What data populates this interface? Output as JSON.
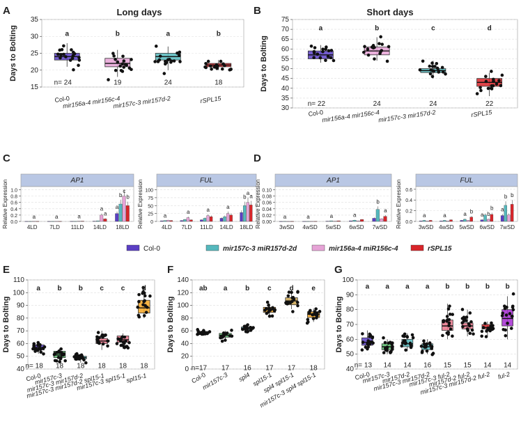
{
  "colors": {
    "col0": "#5b3fc4",
    "mir157": "#55b8bd",
    "mir156": "#e6a3d6",
    "rspl15": "#d8252a",
    "green": "#5bbf6d",
    "orange": "#f5a623",
    "pink": "#e8748a",
    "tan": "#c9a24d",
    "magenta": "#a52bd1",
    "grey": "#9aa0a6",
    "header": "#b9c7e4"
  },
  "chart_data": [
    {
      "id": "A",
      "type": "box",
      "title": "Long days",
      "ylabel": "Days to Bolting",
      "ylim": [
        15,
        35
      ],
      "yticks": [
        15,
        20,
        25,
        30,
        35
      ],
      "categories": [
        "Col-0",
        "mir156a-4 mir156c-4",
        "mir157c-3 mir157d-2",
        "rSPL15"
      ],
      "italic": [
        false,
        true,
        true,
        true
      ],
      "median": [
        24,
        22,
        24,
        21.5
      ],
      "q1": [
        23,
        21,
        23,
        21
      ],
      "q3": [
        25,
        23.5,
        25,
        22
      ],
      "low": [
        21,
        18,
        20,
        20
      ],
      "high": [
        28,
        26,
        27,
        23
      ],
      "letters": [
        "a",
        "b",
        "a",
        "b"
      ],
      "letter_y": 31,
      "n": [
        "n= 24",
        "19",
        "24",
        "18"
      ],
      "n_y": 16.5,
      "color_keys": [
        "col0",
        "mir156",
        "mir157",
        "rspl15"
      ]
    },
    {
      "id": "B",
      "type": "box",
      "title": "Short days",
      "ylabel": "Days to Bolting",
      "ylim": [
        30,
        75
      ],
      "yticks": [
        30,
        35,
        40,
        45,
        50,
        55,
        60,
        65,
        70,
        75
      ],
      "categories": [
        "Col-0",
        "mir156a-4 mir156c-4",
        "mir157c-3 mir157d-2",
        "rSPL15"
      ],
      "italic": [
        false,
        true,
        true,
        true
      ],
      "median": [
        57,
        59,
        49,
        43
      ],
      "q1": [
        55,
        57,
        48,
        41
      ],
      "q3": [
        59,
        61,
        50,
        45
      ],
      "low": [
        53,
        54,
        45,
        36
      ],
      "high": [
        62,
        66,
        54,
        48
      ],
      "letters": [
        "a",
        "b",
        "c",
        "d"
      ],
      "letter_y": 71,
      "n": [
        "n= 22",
        "24",
        "24",
        "22"
      ],
      "n_y": 32.5,
      "color_keys": [
        "col0",
        "mir156",
        "mir157",
        "rspl15"
      ]
    },
    {
      "id": "C1",
      "type": "bar",
      "title": "AP1",
      "ylabel": "Relative Expression",
      "ylim": [
        0,
        1.1
      ],
      "yticks": [
        0,
        0.2,
        0.4,
        0.6,
        0.8,
        1.0
      ],
      "ytick_labels": [
        "0.0",
        "0.2",
        "0.4",
        "0.6",
        "0.8",
        "1.0"
      ],
      "categories": [
        "4LD",
        "7LD",
        "11LD",
        "14LD",
        "18LD"
      ],
      "series": [
        {
          "name": "Col-0",
          "values": [
            0.003,
            0.003,
            0.005,
            0.01,
            0.25
          ]
        },
        {
          "name": "mir157c-3 miR157d-2d",
          "values": [
            0.003,
            0.003,
            0.005,
            0.02,
            0.55
          ]
        },
        {
          "name": "mir156a-4 miR156c-4",
          "values": [
            0.004,
            0.004,
            0.01,
            0.2,
            0.8
          ]
        },
        {
          "name": "rSPL15",
          "values": [
            0.004,
            0.004,
            0.01,
            0.08,
            0.5
          ]
        }
      ],
      "group_letters": [
        {
          "cat": 0,
          "s": 2,
          "t": "a"
        },
        {
          "cat": 1,
          "s": 2,
          "t": "a"
        },
        {
          "cat": 2,
          "s": 2,
          "t": "a"
        },
        {
          "cat": 3,
          "s": 2,
          "t": "a"
        },
        {
          "cat": 3,
          "s": 3,
          "t": "a"
        },
        {
          "cat": 4,
          "s": 0,
          "t": "a"
        },
        {
          "cat": 4,
          "s": 1,
          "t": "b"
        },
        {
          "cat": 4,
          "s": 2,
          "t": "c"
        },
        {
          "cat": 4,
          "s": 3,
          "t": "b"
        }
      ]
    },
    {
      "id": "C2",
      "type": "bar",
      "title": "FUL",
      "ylabel": "Relative Expression",
      "ylim": [
        0,
        110
      ],
      "yticks": [
        0,
        25,
        50,
        75,
        100
      ],
      "ytick_labels": [
        "0",
        "25",
        "50",
        "75",
        "100"
      ],
      "categories": [
        "4LD",
        "7LD",
        "11LD",
        "14LD",
        "18LD"
      ],
      "series": [
        {
          "name": "Col-0",
          "values": [
            2,
            3,
            5,
            10,
            28
          ]
        },
        {
          "name": "mir157c-3 miR157d-2d",
          "values": [
            3,
            6,
            10,
            15,
            50
          ]
        },
        {
          "name": "mir156a-4 miR156c-4",
          "values": [
            4,
            12,
            18,
            25,
            60
          ]
        },
        {
          "name": "rSPL15",
          "values": [
            3,
            5,
            15,
            20,
            52
          ]
        }
      ],
      "group_letters": [
        {
          "cat": 0,
          "s": 1,
          "t": "a"
        },
        {
          "cat": 1,
          "s": 2,
          "t": "a"
        },
        {
          "cat": 2,
          "s": 2,
          "t": "a"
        },
        {
          "cat": 3,
          "s": 2,
          "t": "a"
        },
        {
          "cat": 4,
          "s": 1,
          "t": "b"
        },
        {
          "cat": 4,
          "s": 2,
          "t": "a"
        },
        {
          "cat": 4,
          "s": 3,
          "t": "a"
        }
      ]
    },
    {
      "id": "D1",
      "type": "bar",
      "title": "AP1",
      "ylabel": "Relative Expression",
      "ylim": [
        0,
        0.11
      ],
      "yticks": [
        0,
        0.02,
        0.04,
        0.06,
        0.08,
        0.1
      ],
      "ytick_labels": [
        "0.00",
        "0.02",
        "0.04",
        "0.06",
        "0.08",
        "0.10"
      ],
      "categories": [
        "3wSD",
        "4wSD",
        "5wSD",
        "6wSD",
        "7wSD"
      ],
      "series": [
        {
          "name": "Col-0",
          "values": [
            0.0002,
            0.0003,
            0.001,
            0.002,
            0.01
          ]
        },
        {
          "name": "mir157c-3 miR157d-2d",
          "values": [
            0.0003,
            0.0003,
            0.002,
            0.004,
            0.038
          ]
        },
        {
          "name": "mir156a-4 miR156c-4",
          "values": [
            0.0002,
            0.0003,
            0.001,
            0.002,
            0.008
          ]
        },
        {
          "name": "rSPL15",
          "values": [
            0.0003,
            0.0004,
            0.002,
            0.006,
            0.016
          ]
        }
      ],
      "group_letters": [
        {
          "cat": 0,
          "s": 1,
          "t": "a"
        },
        {
          "cat": 1,
          "s": 1,
          "t": "a"
        },
        {
          "cat": 2,
          "s": 1,
          "t": "a"
        },
        {
          "cat": 3,
          "s": 1,
          "t": "a"
        },
        {
          "cat": 4,
          "s": 1,
          "t": "b"
        },
        {
          "cat": 4,
          "s": 3,
          "t": "a"
        }
      ]
    },
    {
      "id": "D2",
      "type": "bar",
      "title": "FUL",
      "ylabel": "Relative Expression",
      "ylim": [
        0,
        0.65
      ],
      "yticks": [
        0,
        0.2,
        0.4,
        0.6
      ],
      "ytick_labels": [
        "0.0",
        "0.2",
        "0.4",
        "0.6"
      ],
      "categories": [
        "3wSD",
        "4wSD",
        "5wSD",
        "6wSD",
        "7wSD"
      ],
      "series": [
        {
          "name": "Col-0",
          "values": [
            0.01,
            0.01,
            0.02,
            0.03,
            0.11
          ]
        },
        {
          "name": "mir157c-3 miR157d-2d",
          "values": [
            0.02,
            0.02,
            0.04,
            0.12,
            0.3
          ]
        },
        {
          "name": "mir156a-4 miR156c-4",
          "values": [
            0.01,
            0.01,
            0.02,
            0.04,
            0.12
          ]
        },
        {
          "name": "rSPL15",
          "values": [
            0.02,
            0.03,
            0.08,
            0.13,
            0.32
          ]
        }
      ],
      "group_letters": [
        {
          "cat": 0,
          "s": 1,
          "t": "a"
        },
        {
          "cat": 1,
          "s": 1,
          "t": "a"
        },
        {
          "cat": 2,
          "s": 1,
          "t": "a"
        },
        {
          "cat": 2,
          "s": 3,
          "t": "b"
        },
        {
          "cat": 3,
          "s": 0,
          "t": "a"
        },
        {
          "cat": 3,
          "s": 2,
          "t": "b"
        },
        {
          "cat": 3,
          "s": 3,
          "t": "b"
        },
        {
          "cat": 4,
          "s": 0,
          "t": "a"
        },
        {
          "cat": 4,
          "s": 1,
          "t": "b"
        },
        {
          "cat": 4,
          "s": 3,
          "t": "b"
        }
      ]
    },
    {
      "id": "E",
      "type": "box",
      "title": "",
      "ylabel": "Days to Bolting",
      "ylim": [
        40,
        110
      ],
      "yticks": [
        40,
        50,
        60,
        70,
        80,
        90,
        100,
        110
      ],
      "categories": [
        "Col-0",
        "mir157c-3",
        "mir157c-3 mir157d-2",
        "mir157c-3 mir157d-2 spl15-1",
        "mir157c-3 spl15-1",
        "spl15-1"
      ],
      "italic": [
        false,
        true,
        true,
        true,
        true,
        true
      ],
      "median": [
        57,
        51,
        49,
        62,
        63,
        88
      ],
      "q1": [
        55,
        49,
        48,
        60,
        61,
        84
      ],
      "q3": [
        59,
        54,
        50,
        64,
        66,
        94
      ],
      "low": [
        52,
        46,
        45,
        55,
        56,
        80
      ],
      "high": [
        61,
        56,
        52,
        70,
        68,
        103
      ],
      "letters": [
        "a",
        "b",
        "b",
        "c",
        "c",
        "d"
      ],
      "letter_y": 104,
      "n": [
        "n= 18",
        "18",
        "18",
        "18",
        "18",
        "18"
      ],
      "n_y": 43,
      "color_keys": [
        "col0",
        "green",
        "mir157",
        "pink",
        "pink",
        "orange"
      ]
    },
    {
      "id": "F",
      "type": "box",
      "title": "",
      "ylabel": "Days to Bolting",
      "ylim": [
        0,
        140
      ],
      "yticks": [
        0,
        20,
        40,
        60,
        80,
        100,
        120,
        140
      ],
      "categories": [
        "Col-0",
        "mir157c-3",
        "spl4",
        "spl15-1",
        "spl4 spl15-1",
        "mir157c-3 spl4 spl15-1"
      ],
      "italic": [
        false,
        true,
        true,
        true,
        true,
        true
      ],
      "median": [
        58,
        53,
        64,
        93,
        107,
        86
      ],
      "q1": [
        56,
        50,
        62,
        89,
        101,
        81
      ],
      "q3": [
        59,
        56,
        66,
        97,
        112,
        90
      ],
      "low": [
        53,
        46,
        58,
        84,
        94,
        74
      ],
      "high": [
        62,
        60,
        69,
        103,
        124,
        95
      ],
      "letters": [
        "ab",
        "a",
        "b",
        "c",
        "d",
        "e"
      ],
      "letter_y": 128,
      "n": [
        "n=17",
        "17",
        "16",
        "17",
        "17",
        "18"
      ],
      "n_y": 3,
      "color_keys": [
        "grey",
        "green",
        "mir157",
        "orange",
        "tan",
        "orange"
      ]
    },
    {
      "id": "G",
      "type": "box",
      "title": "",
      "ylabel": "Days to Bolting",
      "ylim": [
        40,
        100
      ],
      "yticks": [
        40,
        50,
        60,
        70,
        80,
        90,
        100
      ],
      "categories": [
        "Col-0",
        "mir157c-3",
        "mir157d-2",
        "mir157c-3 mir157d-2",
        "mir157c-3 ful-2",
        "mir157d-2 ful-2",
        "mir157c-3 mir157d-2 ful-2",
        "ful-2"
      ],
      "italic": [
        false,
        true,
        true,
        true,
        true,
        true,
        true,
        true
      ],
      "median": [
        58,
        55,
        57,
        55,
        69,
        69,
        68,
        74
      ],
      "q1": [
        56,
        53,
        55,
        53,
        66,
        67,
        67,
        69
      ],
      "q3": [
        61,
        57,
        60,
        57,
        73,
        71,
        70,
        80
      ],
      "low": [
        53,
        50,
        52,
        50,
        60,
        62,
        62,
        60
      ],
      "high": [
        66,
        60,
        64,
        60,
        84,
        80,
        72,
        89
      ],
      "letters": [
        "a",
        "a",
        "a",
        "a",
        "b",
        "b",
        "b",
        "b"
      ],
      "letter_y": 96,
      "n": [
        "n= 13",
        "14",
        "14",
        "16",
        "15",
        "15",
        "14",
        "14"
      ],
      "n_y": 43,
      "color_keys": [
        "col0",
        "green",
        "mir157",
        "mir157",
        "pink",
        "pink",
        "rspl15",
        "magenta"
      ]
    }
  ],
  "panel_labels": [
    "A",
    "B",
    "C",
    "D",
    "E",
    "F",
    "G"
  ],
  "legend": [
    {
      "label": "Col-0",
      "color_key": "col0"
    },
    {
      "label": "mir157c-3 miR157d-2d",
      "color_key": "mir157"
    },
    {
      "label": "mir156a-4 miR156c-4",
      "color_key": "mir156"
    },
    {
      "label": "rSPL15",
      "color_key": "rspl15"
    }
  ]
}
